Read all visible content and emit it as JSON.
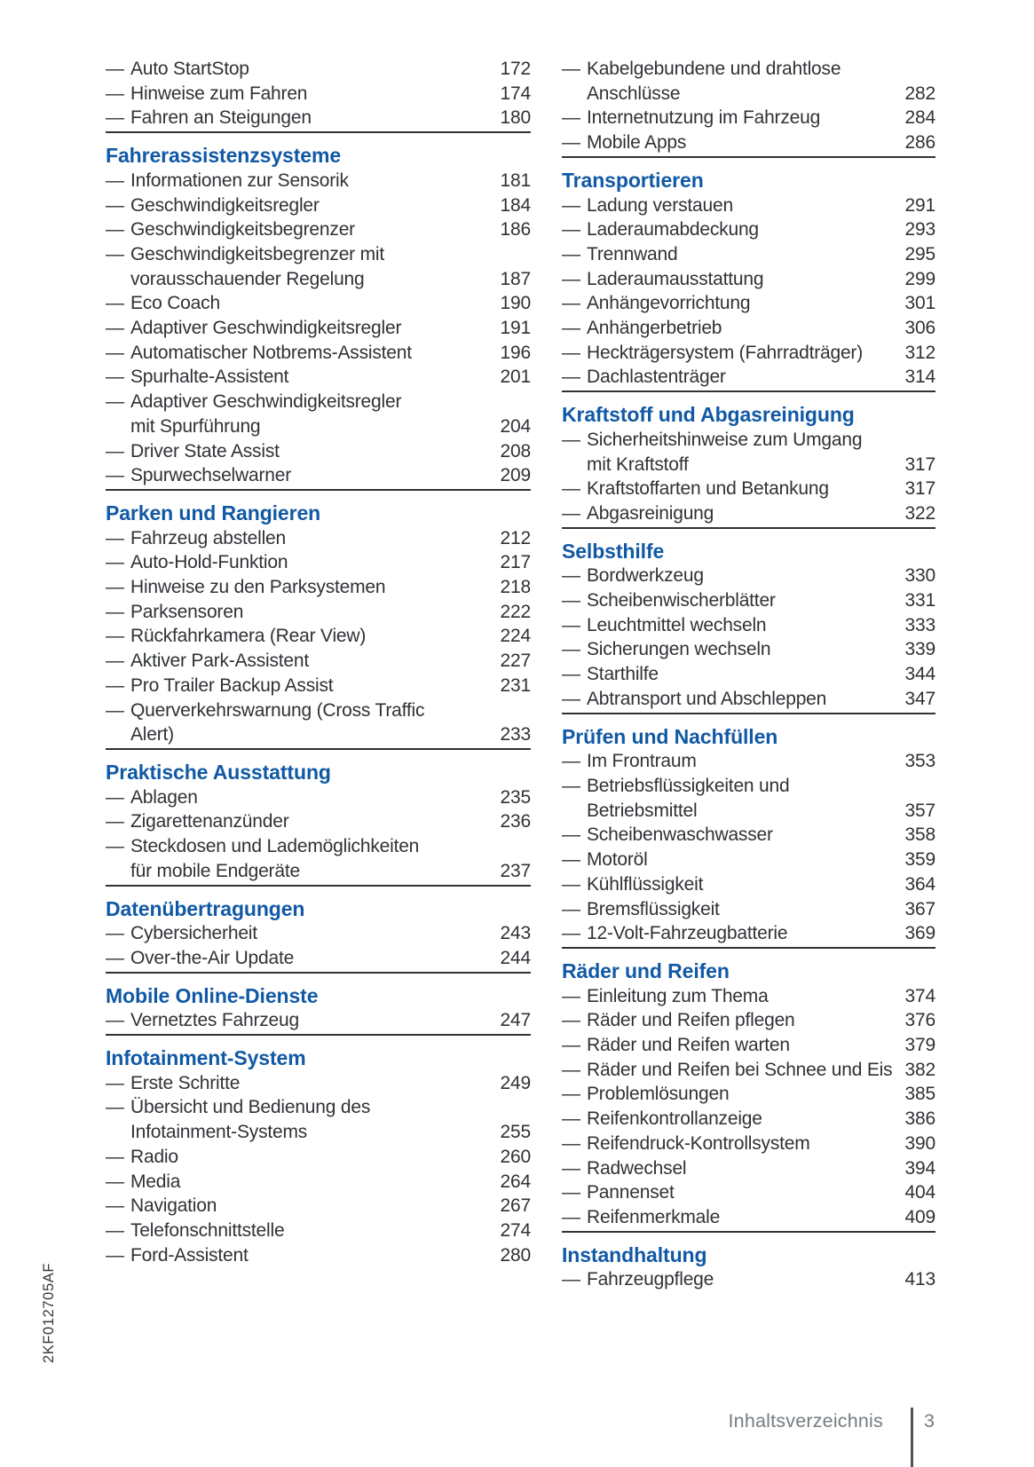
{
  "page": {
    "side_code": "2KF012705AF",
    "item_bullet": "—",
    "footer": {
      "label": "Inhaltsverzeichnis",
      "page_number": "3"
    },
    "colors": {
      "background": "#ffffff",
      "text": "#2f3236",
      "heading_blue": "#1159a5",
      "rule": "#2f3236",
      "footer_text": "#757c80",
      "footer_bar": "#4c545a",
      "side_code_text": "#35383b"
    },
    "columns": [
      {
        "sections": [
          {
            "title": null,
            "items": [
              {
                "label": "Auto StartStop",
                "page": "172"
              },
              {
                "label": "Hinweise zum Fahren",
                "page": "174"
              },
              {
                "label": "Fahren an Steigungen",
                "page": "180"
              }
            ]
          },
          {
            "title": "Fahrerassistenzsysteme",
            "items": [
              {
                "label": "Informationen zur Sensorik",
                "page": "181"
              },
              {
                "label": "Geschwindigkeitsregler",
                "page": "184"
              },
              {
                "label": "Geschwindigkeitsbegrenzer",
                "page": "186"
              },
              {
                "label": "Geschwindigkeitsbegrenzer mit\nvorausschauender Regelung",
                "page": "187"
              },
              {
                "label": "Eco Coach",
                "page": "190"
              },
              {
                "label": "Adaptiver Geschwindigkeitsregler",
                "page": "191"
              },
              {
                "label": "Automatischer Notbrems-Assistent",
                "page": "196"
              },
              {
                "label": "Spurhalte-Assistent",
                "page": "201"
              },
              {
                "label": "Adaptiver Geschwindigkeitsregler\nmit Spurführung",
                "page": "204"
              },
              {
                "label": "Driver State Assist",
                "page": "208"
              },
              {
                "label": "Spurwechselwarner",
                "page": "209"
              }
            ]
          },
          {
            "title": "Parken und Rangieren",
            "items": [
              {
                "label": "Fahrzeug abstellen",
                "page": "212"
              },
              {
                "label": "Auto-Hold-Funktion",
                "page": "217"
              },
              {
                "label": "Hinweise zu den Parksystemen",
                "page": "218"
              },
              {
                "label": "Parksensoren",
                "page": "222"
              },
              {
                "label": "Rückfahrkamera (Rear View)",
                "page": "224"
              },
              {
                "label": "Aktiver Park-Assistent",
                "page": "227"
              },
              {
                "label": "Pro Trailer Backup Assist",
                "page": "231"
              },
              {
                "label": "Querverkehrswarnung (Cross Traffic\nAlert)",
                "page": "233"
              }
            ]
          },
          {
            "title": "Praktische Ausstattung",
            "items": [
              {
                "label": "Ablagen",
                "page": "235"
              },
              {
                "label": "Zigarettenanzünder",
                "page": "236"
              },
              {
                "label": "Steckdosen und Lademöglichkeiten\nfür mobile Endgeräte",
                "page": "237"
              }
            ]
          },
          {
            "title": "Datenübertragungen",
            "items": [
              {
                "label": "Cybersicherheit",
                "page": "243"
              },
              {
                "label": "Over-the-Air Update",
                "page": "244"
              }
            ]
          },
          {
            "title": "Mobile Online-Dienste",
            "items": [
              {
                "label": "Vernetztes Fahrzeug",
                "page": "247"
              }
            ]
          },
          {
            "title": "Infotainment-System",
            "items": [
              {
                "label": "Erste Schritte",
                "page": "249"
              },
              {
                "label": "Übersicht und Bedienung des\nInfotainment-Systems",
                "page": "255"
              },
              {
                "label": "Radio",
                "page": "260"
              },
              {
                "label": "Media",
                "page": "264"
              },
              {
                "label": "Navigation",
                "page": "267"
              },
              {
                "label": "Telefonschnittstelle",
                "page": "274"
              },
              {
                "label": "Ford-Assistent",
                "page": "280"
              }
            ]
          }
        ]
      },
      {
        "sections": [
          {
            "title": null,
            "items": [
              {
                "label": "Kabelgebundene und drahtlose\nAnschlüsse",
                "page": "282"
              },
              {
                "label": "Internetnutzung im Fahrzeug",
                "page": "284"
              },
              {
                "label": "Mobile Apps",
                "page": "286"
              }
            ]
          },
          {
            "title": "Transportieren",
            "items": [
              {
                "label": "Ladung verstauen",
                "page": "291"
              },
              {
                "label": "Laderaumabdeckung",
                "page": "293"
              },
              {
                "label": "Trennwand",
                "page": "295"
              },
              {
                "label": "Laderaumausstattung",
                "page": "299"
              },
              {
                "label": "Anhängevorrichtung",
                "page": "301"
              },
              {
                "label": "Anhängerbetrieb",
                "page": "306"
              },
              {
                "label": "Heckträgersystem (Fahrradträger)",
                "page": "312"
              },
              {
                "label": "Dachlastenträger",
                "page": "314"
              }
            ]
          },
          {
            "title": "Kraftstoff und Abgasreinigung",
            "items": [
              {
                "label": "Sicherheitshinweise zum Umgang\nmit Kraftstoff",
                "page": "317"
              },
              {
                "label": "Kraftstoffarten und Betankung",
                "page": "317"
              },
              {
                "label": "Abgasreinigung",
                "page": "322"
              }
            ]
          },
          {
            "title": "Selbsthilfe",
            "items": [
              {
                "label": "Bordwerkzeug",
                "page": "330"
              },
              {
                "label": "Scheibenwischerblätter",
                "page": "331"
              },
              {
                "label": "Leuchtmittel wechseln",
                "page": "333"
              },
              {
                "label": "Sicherungen wechseln",
                "page": "339"
              },
              {
                "label": "Starthilfe",
                "page": "344"
              },
              {
                "label": "Abtransport und Abschleppen",
                "page": "347"
              }
            ]
          },
          {
            "title": "Prüfen und Nachfüllen",
            "items": [
              {
                "label": "Im Frontraum",
                "page": "353"
              },
              {
                "label": "Betriebsflüssigkeiten und\nBetriebsmittel",
                "page": "357"
              },
              {
                "label": "Scheibenwaschwasser",
                "page": "358"
              },
              {
                "label": "Motoröl",
                "page": "359"
              },
              {
                "label": "Kühlflüssigkeit",
                "page": "364"
              },
              {
                "label": "Bremsflüssigkeit",
                "page": "367"
              },
              {
                "label": "12-Volt-Fahrzeugbatterie",
                "page": "369"
              }
            ]
          },
          {
            "title": "Räder und Reifen",
            "items": [
              {
                "label": "Einleitung zum Thema",
                "page": "374"
              },
              {
                "label": "Räder und Reifen pflegen",
                "page": "376"
              },
              {
                "label": "Räder und Reifen warten",
                "page": "379"
              },
              {
                "label": "Räder und Reifen bei Schnee und Eis",
                "page": "382"
              },
              {
                "label": "Problemlösungen",
                "page": "385"
              },
              {
                "label": "Reifenkontrollanzeige",
                "page": "386"
              },
              {
                "label": "Reifendruck-Kontrollsystem",
                "page": "390"
              },
              {
                "label": "Radwechsel",
                "page": "394"
              },
              {
                "label": "Pannenset",
                "page": "404"
              },
              {
                "label": "Reifenmerkmale",
                "page": "409"
              }
            ]
          },
          {
            "title": "Instandhaltung",
            "items": [
              {
                "label": "Fahrzeugpflege",
                "page": "413"
              }
            ]
          }
        ]
      }
    ]
  }
}
